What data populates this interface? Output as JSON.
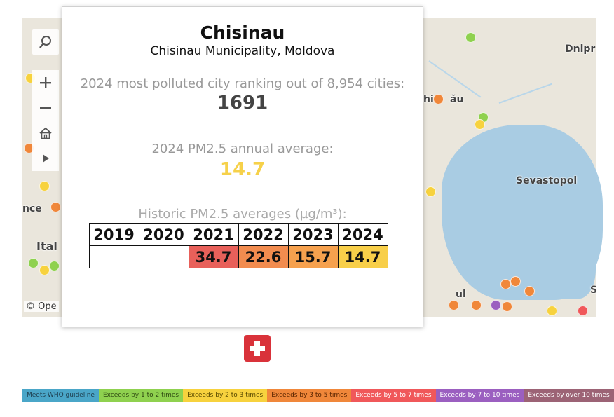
{
  "map": {
    "labels": {
      "dnipro": "Dnipr",
      "chisinau": "hi",
      "chisinau2": "ău",
      "sevastopol": "Sevastopol",
      "france_part": "nce",
      "italy_part": "Ital",
      "turkey_part": "ul",
      "edge_s": "S"
    },
    "attribution": "© Ope",
    "toolbar": {
      "search": "search-icon",
      "zoom_in": "plus-icon",
      "zoom_out": "minus-icon",
      "home": "home-icon",
      "play": "play-icon"
    }
  },
  "popup": {
    "city": "Chisinau",
    "region": "Chisinau Municipality, Moldova",
    "rank_label": "2024 most polluted city ranking out of 8,954 cities:",
    "rank": "1691",
    "avg_label": "2024 PM2.5 annual average:",
    "avg": "14.7",
    "hist_label": "Historic PM2.5 averages (µg/m³):",
    "years": [
      "2019",
      "2020",
      "2021",
      "2022",
      "2023",
      "2024"
    ],
    "values": [
      "",
      "",
      "34.7",
      "22.6",
      "15.7",
      "14.7"
    ],
    "value_colors": [
      "#ffffff",
      "#ffffff",
      "#e8605a",
      "#f28c4f",
      "#f6a14e",
      "#f8cf49"
    ]
  },
  "alert_icon": "plus-cross-icon",
  "legend": [
    {
      "label": "Meets WHO guideline",
      "color": "#4aa6c8",
      "text": "#1d3d4d"
    },
    {
      "label": "Exceeds by 1 to 2 times",
      "color": "#8fd14f",
      "text": "#2f4a12"
    },
    {
      "label": "Exceeds by 2 to 3 times",
      "color": "#f7d23e",
      "text": "#5a4a00"
    },
    {
      "label": "Exceeds by 3 to 5 times",
      "color": "#f0873a",
      "text": "#5a2500"
    },
    {
      "label": "Exceeds by 5 to 7 times",
      "color": "#f0585a",
      "text": "#ffffff"
    },
    {
      "label": "Exceeds by 7 to 10 times",
      "color": "#9b5fc0",
      "text": "#ffffff"
    },
    {
      "label": "Exceeds by over 10 times",
      "color": "#9c6375",
      "text": "#ffffff"
    }
  ]
}
